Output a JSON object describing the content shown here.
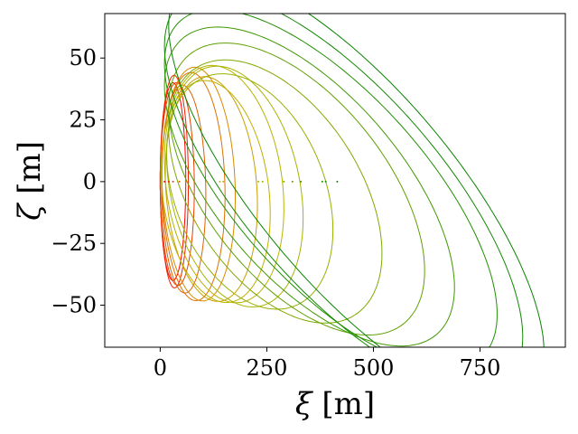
{
  "chart_data": {
    "type": "line",
    "title": "",
    "xlabel_symbol": "ξ",
    "xlabel_unit": " [m]",
    "ylabel_symbol": "ζ",
    "ylabel_unit": " [m]",
    "xlim": [
      -130,
      950
    ],
    "ylim": [
      -67,
      68
    ],
    "xticks": [
      0,
      250,
      500,
      750
    ],
    "xtick_labels": [
      "0",
      "250",
      "500",
      "750"
    ],
    "yticks": [
      -50,
      -25,
      0,
      25,
      50
    ],
    "ytick_labels": [
      "−50",
      "−25",
      "0",
      "25",
      "50"
    ],
    "grid": false,
    "legend": "none",
    "series": [
      {
        "color": "#ff0000",
        "cx": 30,
        "cz": 0,
        "a": 30,
        "b": 40,
        "tilt": 0
      },
      {
        "color": "#f02000",
        "cx": 33,
        "cz": 0,
        "a": 33,
        "b": 43,
        "tilt": 0.02
      },
      {
        "color": "#e84000",
        "cx": 40,
        "cz": -1,
        "a": 40,
        "b": 41,
        "tilt": 0.04
      },
      {
        "color": "#e06000",
        "cx": 55,
        "cz": -3,
        "a": 52,
        "b": 42,
        "tilt": 0.05
      },
      {
        "color": "#dd7000",
        "cx": 78,
        "cz": -2,
        "a": 74,
        "b": 46,
        "tilt": 0.05
      },
      {
        "color": "#d88800",
        "cx": 90,
        "cz": -1,
        "a": 86,
        "b": 47,
        "tilt": 0.06
      },
      {
        "color": "#c8a000",
        "cx": 120,
        "cz": -3,
        "a": 108,
        "b": 45,
        "tilt": 0.06
      },
      {
        "color": "#c0b000",
        "cx": 130,
        "cz": -4,
        "a": 128,
        "b": 44,
        "tilt": 0.07
      },
      {
        "color": "#b8b400",
        "cx": 150,
        "cz": -1,
        "a": 140,
        "b": 47,
        "tilt": 0.07
      },
      {
        "color": "#a8b400",
        "cx": 175,
        "cz": -2,
        "a": 160,
        "b": 47,
        "tilt": 0.08
      },
      {
        "color": "#98b000",
        "cx": 210,
        "cz": -4,
        "a": 195,
        "b": 45,
        "tilt": 0.08
      },
      {
        "color": "#80a800",
        "cx": 270,
        "cz": -4,
        "a": 250,
        "b": 47,
        "tilt": 0.1
      },
      {
        "color": "#60a000",
        "cx": 320,
        "cz": -3,
        "a": 300,
        "b": 49,
        "tilt": 0.11
      },
      {
        "color": "#409800",
        "cx": 350,
        "cz": -2,
        "a": 340,
        "b": 50,
        "tilt": 0.12
      },
      {
        "color": "#208f00",
        "cx": 400,
        "cz": -3,
        "a": 390,
        "b": 52,
        "tilt": 0.13
      },
      {
        "color": "#108800",
        "cx": 430,
        "cz": -4,
        "a": 420,
        "b": 55,
        "tilt": 0.14
      },
      {
        "color": "#088400",
        "cx": 460,
        "cz": -3,
        "a": 440,
        "b": 56,
        "tilt": 0.15
      }
    ],
    "markers": [
      {
        "x": 10,
        "color": "#ff0000"
      },
      {
        "x": 20,
        "color": "#f02000"
      },
      {
        "x": 30,
        "color": "#e84000"
      },
      {
        "x": 45,
        "color": "#e06000"
      },
      {
        "x": 60,
        "color": "#dd7000"
      },
      {
        "x": 80,
        "color": "#d88800"
      },
      {
        "x": 110,
        "color": "#c8a000"
      },
      {
        "x": 140,
        "color": "#c0b000"
      },
      {
        "x": 148,
        "color": "#b8b400"
      },
      {
        "x": 230,
        "color": "#a8b400"
      },
      {
        "x": 240,
        "color": "#98b000"
      },
      {
        "x": 290,
        "color": "#80a800"
      },
      {
        "x": 310,
        "color": "#60a000"
      },
      {
        "x": 330,
        "color": "#409800"
      },
      {
        "x": 380,
        "color": "#208f00"
      },
      {
        "x": 388,
        "color": "#108800"
      },
      {
        "x": 415,
        "color": "#088400"
      }
    ]
  }
}
